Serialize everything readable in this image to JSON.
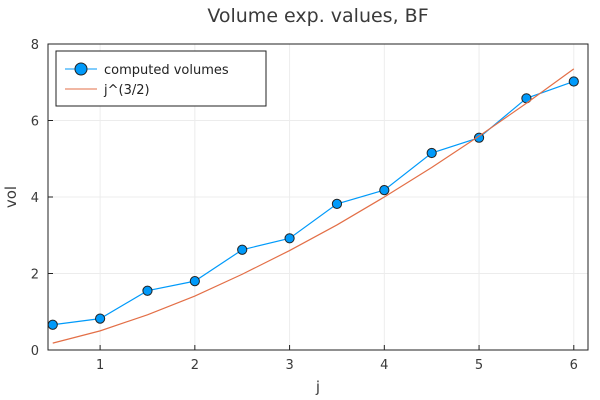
{
  "chart_data": {
    "type": "line",
    "title": "Volume exp. values, BF",
    "xlabel": "j",
    "ylabel": "vol",
    "xlim": [
      0.45,
      6.15
    ],
    "ylim": [
      0,
      8
    ],
    "xticks": [
      1,
      2,
      3,
      4,
      5,
      6
    ],
    "yticks": [
      0,
      2,
      4,
      6,
      8
    ],
    "grid": true,
    "legend_position": "top-left",
    "series": [
      {
        "name": "computed volumes",
        "style": "line-with-markers",
        "color": "#009AFA",
        "x": [
          0.5,
          1.0,
          1.5,
          2.0,
          2.5,
          3.0,
          3.5,
          4.0,
          4.5,
          5.0,
          5.5,
          6.0
        ],
        "y": [
          0.66,
          0.82,
          1.55,
          1.8,
          2.62,
          2.92,
          3.82,
          4.18,
          5.15,
          5.55,
          6.58,
          7.02
        ]
      },
      {
        "name": "j^(3/2)",
        "style": "line",
        "color": "#E36F47",
        "x": [
          0.5,
          1.0,
          1.5,
          2.0,
          2.5,
          3.0,
          3.5,
          4.0,
          4.5,
          5.0,
          5.5,
          6.0
        ],
        "y": [
          0.18,
          0.5,
          0.92,
          1.41,
          1.98,
          2.6,
          3.27,
          4.0,
          4.77,
          5.59,
          6.45,
          7.35
        ]
      }
    ]
  }
}
